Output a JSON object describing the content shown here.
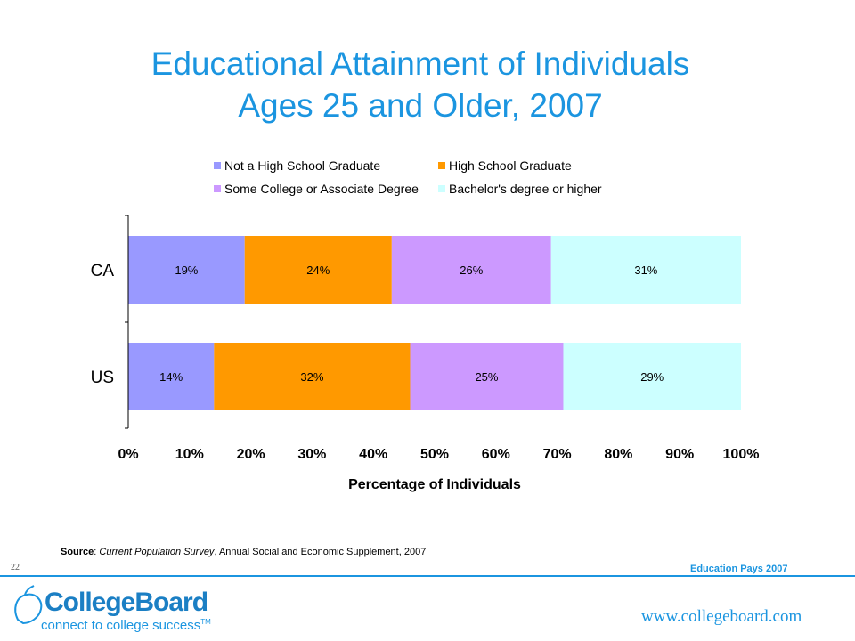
{
  "title_line1": "Educational Attainment of Individuals",
  "title_line2": "Ages 25 and Older, 2007",
  "chart_data": {
    "type": "bar",
    "orientation": "horizontal",
    "stacked": true,
    "categories": [
      "CA",
      "US"
    ],
    "series": [
      {
        "name": "Not a High School Graduate",
        "values": [
          19,
          14
        ],
        "color": "#9999ff"
      },
      {
        "name": "High School Graduate",
        "values": [
          24,
          32
        ],
        "color": "#ff9900"
      },
      {
        "name": "Some College or Associate Degree",
        "values": [
          26,
          25
        ],
        "color": "#cc99ff"
      },
      {
        "name": "Bachelor's degree or higher",
        "values": [
          31,
          29
        ],
        "color": "#ccffff"
      }
    ],
    "data_labels": [
      [
        "19%",
        "24%",
        "26%",
        "31%"
      ],
      [
        "14%",
        "32%",
        "25%",
        "29%"
      ]
    ],
    "xlabel": "Percentage of Individuals",
    "xlim": [
      0,
      100
    ],
    "xticks": [
      "0%",
      "10%",
      "20%",
      "30%",
      "40%",
      "50%",
      "60%",
      "70%",
      "80%",
      "90%",
      "100%"
    ],
    "legend_position": "top",
    "grid": false
  },
  "source": {
    "label": "Source",
    "sep": ": ",
    "title": "Current Population Survey",
    "rest": ", Annual Social and Economic Supplement, 2007"
  },
  "footer": {
    "slide_number": "22",
    "publication": "Education Pays 2007",
    "url": "www.collegeboard.com",
    "logo_name": "CollegeBoard",
    "logo_tagline": "connect to college success",
    "logo_tm": "TM"
  }
}
